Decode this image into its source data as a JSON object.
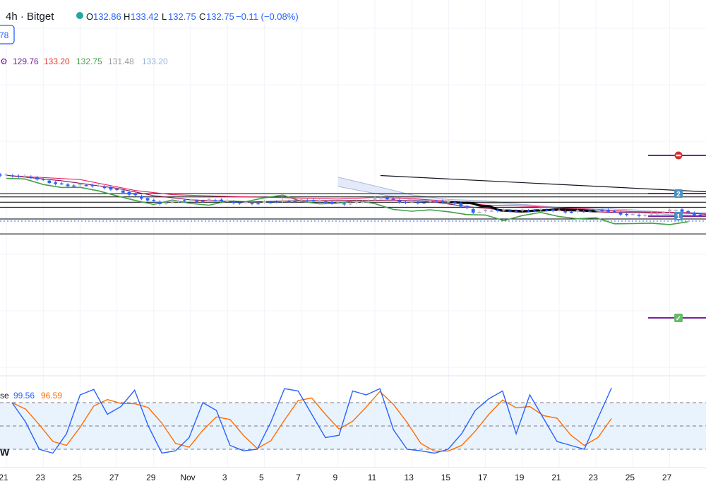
{
  "header": {
    "interval_source": "4h · Bitget",
    "open_label": "O",
    "open": "132.86",
    "high_label": "H",
    "high": "133.42",
    "low_label": "L",
    "low": "132.75",
    "close_label": "C",
    "close": "132.75",
    "change": "−0.11 (−0.08%)",
    "badge": "78"
  },
  "ichimoku_values": [
    "129.76",
    "133.20",
    "132.75",
    "131.48",
    "133.20"
  ],
  "stoch": {
    "label": "se",
    "k": "99.56",
    "d": "96.59",
    "left_mark": "W"
  },
  "markers": [
    "2",
    "1",
    "✓"
  ],
  "colors": {
    "candle": "#2962ff",
    "candle_alt": "#b2b5be",
    "conversion": "#880e4f",
    "base": "#e91e63",
    "lagging": "#43a047",
    "cloud": "#dbe3f7",
    "stoch_k": "#2962ff",
    "stoch_d": "#ff6d00",
    "hline": "#000000",
    "marker_line": "#7b1fa2",
    "marker_box": "#4a90c2",
    "value_color_1": "#7b1fa2",
    "value_color_2": "#e53935",
    "value_color_3": "#43a047",
    "value_color_4": "#9e9e9e",
    "value_color_5": "#90b8dd"
  },
  "chart_data": {
    "type": "candlestick",
    "symbol_interval": "4h · Bitget",
    "x_labels": [
      "21",
      "23",
      "25",
      "27",
      "29",
      "Nov",
      "3",
      "5",
      "7",
      "9",
      "11",
      "13",
      "15",
      "17",
      "19",
      "21",
      "23",
      "25",
      "27"
    ],
    "horizontal_levels": [
      146.5,
      144.9,
      142.2,
      139.7,
      133.8,
      126.3
    ],
    "current_price": 132.75,
    "price_series": [
      [
        0,
        155.5
      ],
      [
        1,
        154.8
      ],
      [
        2,
        152.2
      ],
      [
        3,
        150.6
      ],
      [
        4,
        151.0
      ],
      [
        5,
        149.6
      ],
      [
        6,
        147.3
      ],
      [
        7,
        144.3
      ],
      [
        8,
        141.6
      ],
      [
        9,
        143.2
      ],
      [
        10,
        142.8
      ],
      [
        11,
        143.5
      ],
      [
        12,
        142.1
      ],
      [
        13,
        141.7
      ],
      [
        14,
        142.5
      ],
      [
        15,
        142.9
      ],
      [
        16,
        143.3
      ],
      [
        17,
        142.3
      ],
      [
        18,
        141.4
      ],
      [
        19,
        142.7
      ],
      [
        20,
        144.8
      ],
      [
        21,
        142.4
      ],
      [
        22,
        142.1
      ],
      [
        23,
        142.9
      ],
      [
        24,
        141.8
      ],
      [
        25,
        137.3
      ],
      [
        26,
        138.3
      ],
      [
        27,
        137.9
      ],
      [
        28,
        138.1
      ],
      [
        29,
        138.6
      ],
      [
        30,
        137.4
      ],
      [
        31,
        137.9
      ],
      [
        32,
        138.4
      ],
      [
        33,
        136.3
      ],
      [
        34,
        135.6
      ],
      [
        35,
        136.9
      ],
      [
        36,
        138.6
      ],
      [
        37,
        136.0
      ],
      [
        38,
        135.1
      ],
      [
        39,
        134.4
      ],
      [
        40,
        133.0
      ],
      [
        41,
        132.1
      ],
      [
        42,
        131.0
      ],
      [
        43,
        132.7
      ],
      [
        44,
        132.7
      ]
    ],
    "conversion_line": [
      [
        0,
        155.7
      ],
      [
        3,
        153.0
      ],
      [
        6,
        149.2
      ],
      [
        8,
        145.5
      ],
      [
        10,
        143.4
      ],
      [
        13,
        142.3
      ],
      [
        16,
        143.0
      ],
      [
        19,
        143.1
      ],
      [
        21,
        143.3
      ],
      [
        23,
        142.6
      ],
      [
        25,
        140.0
      ],
      [
        27,
        138.3
      ],
      [
        30,
        138.0
      ],
      [
        33,
        137.1
      ],
      [
        36,
        137.0
      ],
      [
        38,
        136.3
      ],
      [
        40,
        133.8
      ],
      [
        42,
        131.8
      ],
      [
        44,
        132.6
      ]
    ],
    "base_line": [
      [
        0,
        155.6
      ],
      [
        4,
        153.6
      ],
      [
        7,
        148.1
      ],
      [
        9,
        146.0
      ],
      [
        12,
        145.1
      ],
      [
        15,
        144.5
      ],
      [
        18,
        143.8
      ],
      [
        20,
        144.6
      ],
      [
        22,
        144.0
      ],
      [
        24,
        142.7
      ],
      [
        26,
        140.8
      ],
      [
        28,
        140.3
      ],
      [
        31,
        139.1
      ],
      [
        34,
        137.5
      ],
      [
        37,
        137.0
      ],
      [
        39,
        135.1
      ],
      [
        41,
        133.8
      ],
      [
        44,
        133.2
      ]
    ],
    "lagging_span": [
      [
        0,
        154.2
      ],
      [
        1,
        153.9
      ],
      [
        2,
        151.1
      ],
      [
        3,
        149.6
      ],
      [
        4,
        149.7
      ],
      [
        5,
        147.9
      ],
      [
        6,
        145.4
      ],
      [
        7,
        143.1
      ],
      [
        8,
        141.1
      ],
      [
        9,
        143.3
      ],
      [
        10,
        141.6
      ],
      [
        11,
        140.7
      ],
      [
        12,
        142.8
      ],
      [
        13,
        142.5
      ],
      [
        14,
        144.4
      ],
      [
        15,
        145.8
      ],
      [
        16,
        142.7
      ],
      [
        17,
        141.4
      ],
      [
        18,
        141.7
      ],
      [
        19,
        143.2
      ],
      [
        20,
        141.5
      ],
      [
        21,
        138.6
      ],
      [
        22,
        137.7
      ],
      [
        23,
        138.4
      ],
      [
        24,
        137.4
      ],
      [
        25,
        136.0
      ],
      [
        26,
        135.8
      ],
      [
        27,
        133.0
      ],
      [
        28,
        135.5
      ],
      [
        29,
        137.1
      ],
      [
        30,
        135.0
      ],
      [
        31,
        133.9
      ],
      [
        32,
        134.4
      ],
      [
        33,
        131.4
      ],
      [
        34,
        131.5
      ],
      [
        35,
        131.7
      ],
      [
        36,
        131.0
      ],
      [
        37,
        132.4
      ]
    ],
    "cloud_upper": [
      [
        18,
        154.8
      ],
      [
        20,
        150.4
      ],
      [
        22,
        145.9
      ],
      [
        24,
        143.6
      ],
      [
        26,
        142.9
      ],
      [
        28,
        141.2
      ],
      [
        30,
        139.6
      ],
      [
        32,
        139.3
      ],
      [
        34,
        138.4
      ],
      [
        36,
        137.1
      ],
      [
        38,
        137.0
      ],
      [
        40,
        136.8
      ],
      [
        42,
        136.2
      ],
      [
        44,
        135.6
      ],
      [
        46,
        136.0
      ],
      [
        48,
        133.5
      ],
      [
        49,
        133.3
      ]
    ],
    "cloud_lower": [
      [
        18,
        150.1
      ],
      [
        20,
        146.6
      ],
      [
        22,
        143.4
      ],
      [
        24,
        142.2
      ],
      [
        26,
        141.6
      ],
      [
        28,
        141.0
      ],
      [
        30,
        139.5
      ],
      [
        32,
        138.0
      ],
      [
        34,
        137.2
      ],
      [
        36,
        136.0
      ],
      [
        38,
        135.2
      ],
      [
        40,
        134.0
      ],
      [
        42,
        133.4
      ],
      [
        44,
        133.0
      ],
      [
        46,
        132.7
      ],
      [
        48,
        132.8
      ],
      [
        49,
        132.4
      ]
    ],
    "projection_path": [
      [
        24,
        142.2
      ],
      [
        25,
        141.9
      ],
      [
        26,
        140.2
      ],
      [
        27,
        138.0
      ],
      [
        28,
        137.6
      ],
      [
        29,
        138.1
      ],
      [
        30,
        138.6
      ],
      [
        31,
        138.3
      ],
      [
        32,
        137.7
      ]
    ],
    "trendline": [
      [
        20.3,
        155.6
      ],
      [
        50.2,
        141.8
      ]
    ],
    "stochastic": {
      "upper_band": 80,
      "lower_band": 20,
      "k": 99.56,
      "d": 96.59,
      "k_series": [
        80,
        55,
        20,
        15,
        40,
        90,
        97,
        65,
        75,
        96,
        50,
        15,
        18,
        35,
        80,
        70,
        25,
        18,
        20,
        55,
        98,
        95,
        65,
        35,
        38,
        95,
        90,
        98,
        45,
        20,
        18,
        15,
        20,
        40,
        70,
        85,
        95,
        40,
        90,
        60,
        30,
        25,
        20,
        60,
        99
      ]
    }
  }
}
